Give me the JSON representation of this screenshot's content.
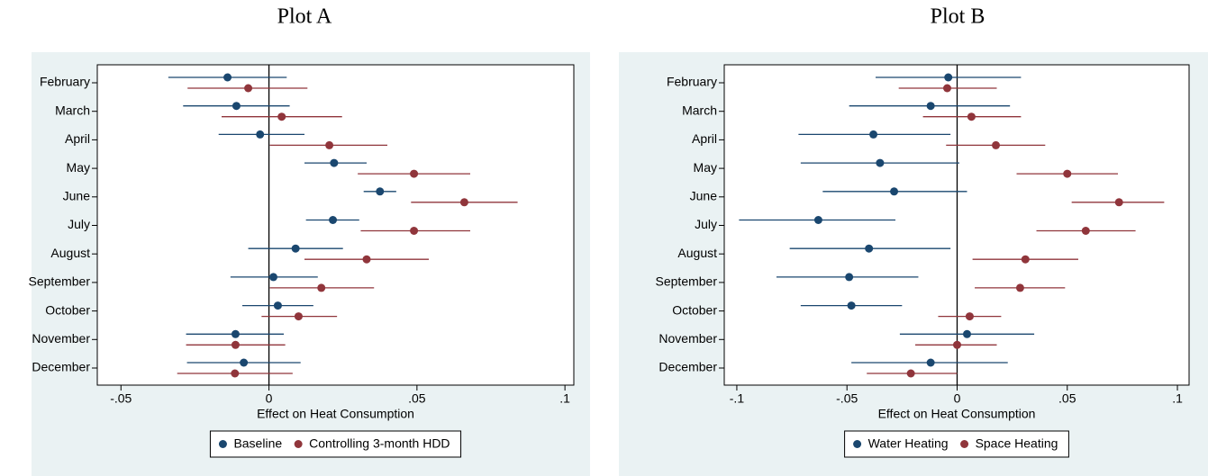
{
  "chart_data": [
    {
      "type": "errorbar",
      "title": "Plot A",
      "x_label": "Effect on Heat Consumption",
      "categories": [
        "February",
        "March",
        "April",
        "May",
        "June",
        "July",
        "August",
        "September",
        "October",
        "November",
        "December"
      ],
      "xlim": [
        -0.058,
        0.103
      ],
      "xticks": [
        {
          "value": -0.05,
          "label": "-.05"
        },
        0,
        {
          "value": 0.05,
          "label": ".05"
        },
        {
          "value": 0.1,
          "label": ".1"
        }
      ],
      "reference_line": 0,
      "series": [
        {
          "name": "Baseline",
          "color": "#1a476f",
          "values": [
            -0.014,
            -0.011,
            -0.003,
            0.022,
            0.0375,
            0.0216,
            0.009,
            0.0015,
            0.003,
            -0.0113,
            -0.0085
          ],
          "lower": [
            -0.034,
            -0.029,
            -0.017,
            0.012,
            0.032,
            0.0125,
            -0.007,
            -0.013,
            -0.009,
            -0.028,
            -0.0277
          ],
          "upper": [
            0.006,
            0.007,
            0.012,
            0.033,
            0.043,
            0.0305,
            0.025,
            0.0165,
            0.015,
            0.005,
            0.0107
          ]
        },
        {
          "name": "Controlling 3-month HDD",
          "color": "#90353b",
          "values": [
            -0.007,
            0.0043,
            0.0204,
            0.049,
            0.066,
            0.049,
            0.033,
            0.0177,
            0.01,
            -0.0113,
            -0.0115
          ],
          "lower": [
            -0.0275,
            -0.016,
            0.0003,
            0.03,
            0.048,
            0.031,
            0.012,
            0.0003,
            -0.0025,
            -0.028,
            -0.031
          ],
          "upper": [
            0.013,
            0.0247,
            0.04,
            0.068,
            0.084,
            0.068,
            0.054,
            0.0355,
            0.023,
            0.0055,
            0.008
          ]
        }
      ]
    },
    {
      "type": "errorbar",
      "title": "Plot B",
      "x_label": "Effect on Heat Consumption",
      "categories": [
        "February",
        "March",
        "April",
        "May",
        "June",
        "July",
        "August",
        "September",
        "October",
        "November",
        "December"
      ],
      "xlim": [
        -0.1057,
        0.1053
      ],
      "xticks": [
        {
          "value": -0.1,
          "label": "-.1"
        },
        {
          "value": -0.05,
          "label": "-.05"
        },
        0,
        {
          "value": 0.05,
          "label": ".05"
        },
        {
          "value": 0.1,
          "label": ".1"
        }
      ],
      "reference_line": 0,
      "series": [
        {
          "name": "Water Heating",
          "color": "#1a476f",
          "values": [
            -0.004,
            -0.012,
            -0.038,
            -0.035,
            -0.0286,
            -0.063,
            -0.04,
            -0.049,
            -0.048,
            0.0045,
            -0.012
          ],
          "lower": [
            -0.037,
            -0.049,
            -0.072,
            -0.071,
            -0.061,
            -0.099,
            -0.076,
            -0.082,
            -0.071,
            -0.026,
            -0.048
          ],
          "upper": [
            0.029,
            0.024,
            -0.003,
            0.001,
            0.0045,
            -0.028,
            -0.003,
            -0.0176,
            -0.025,
            0.035,
            0.023
          ]
        },
        {
          "name": "Space Heating",
          "color": "#90353b",
          "values": [
            -0.0045,
            0.0065,
            0.0176,
            0.05,
            0.0735,
            0.0584,
            0.031,
            0.0286,
            0.0057,
            0.0,
            -0.021
          ],
          "lower": [
            -0.0265,
            -0.0155,
            -0.005,
            0.027,
            0.052,
            0.036,
            0.007,
            0.008,
            -0.0086,
            -0.019,
            -0.041
          ],
          "upper": [
            0.018,
            0.029,
            0.04,
            0.073,
            0.094,
            0.081,
            0.055,
            0.049,
            0.02,
            0.018,
            0.0
          ]
        }
      ]
    }
  ]
}
